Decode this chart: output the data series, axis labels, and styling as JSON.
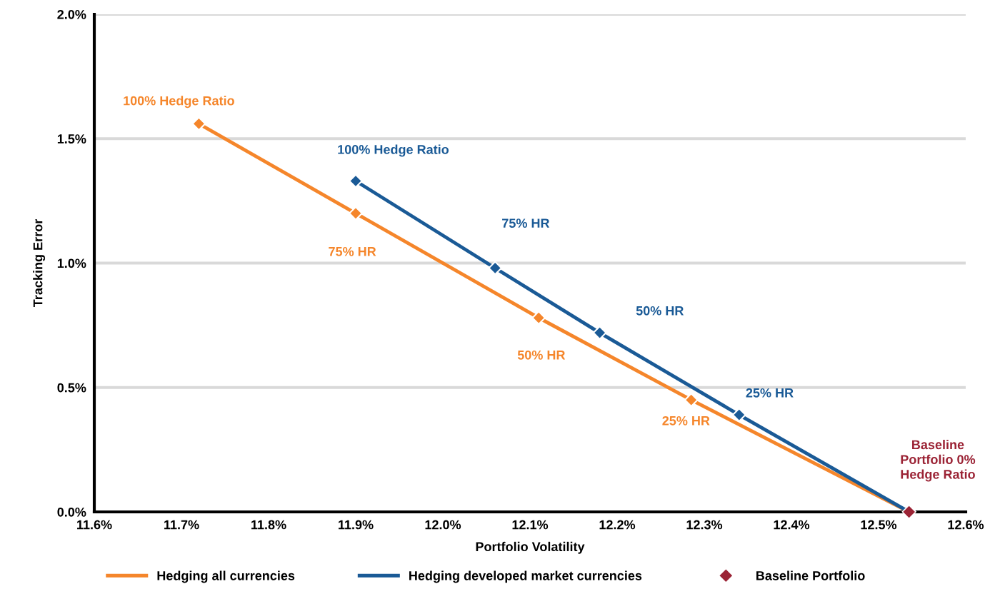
{
  "chart_data": {
    "type": "line",
    "xlabel": "Portfolio Volatility",
    "ylabel": "Tracking Error",
    "xlim": [
      11.6,
      12.6
    ],
    "ylim": [
      0,
      2.0
    ],
    "xticks": [
      {
        "value": 11.6,
        "label": "11.6%"
      },
      {
        "value": 11.7,
        "label": "11.7%"
      },
      {
        "value": 11.8,
        "label": "11.8%"
      },
      {
        "value": 11.9,
        "label": "11.9%"
      },
      {
        "value": 12.0,
        "label": "12.0%"
      },
      {
        "value": 12.1,
        "label": "12.1%"
      },
      {
        "value": 12.2,
        "label": "12.2%"
      },
      {
        "value": 12.3,
        "label": "12.3%"
      },
      {
        "value": 12.4,
        "label": "12.4%"
      },
      {
        "value": 12.5,
        "label": "12.5%"
      },
      {
        "value": 12.6,
        "label": "12.6%"
      }
    ],
    "yticks": [
      {
        "value": 0,
        "label": "0.0%"
      },
      {
        "value": 0.5,
        "label": "0.5%"
      },
      {
        "value": 1.0,
        "label": "1.0%"
      },
      {
        "value": 1.5,
        "label": "1.5%"
      },
      {
        "value": 2.0,
        "label": "2.0%"
      }
    ],
    "annotations": [
      "100% Hedge Ratio",
      "75% HR",
      "50% HR",
      "25% HR",
      "100% Hedge Ratio",
      "75% HR",
      "50% HR",
      "25% HR",
      "Baseline\nPortfolio 0%\nHedge Ratio"
    ],
    "grid": "y",
    "legend": "bottom",
    "marker": "diamond",
    "line_style": "solid",
    "series": [
      {
        "name": "Hedging all currencies",
        "color": "#f5862b",
        "x": [
          11.72,
          11.9,
          12.11,
          12.285,
          12.535
        ],
        "values": [
          1.56,
          1.2,
          0.78,
          0.45,
          0
        ]
      },
      {
        "name": "Hedging developed market currencies",
        "color": "#1a5a96",
        "x": [
          11.9,
          12.06,
          12.18,
          12.34,
          12.535
        ],
        "values": [
          1.33,
          0.98,
          0.72,
          0.39,
          0
        ]
      },
      {
        "name": "Baseline Portfolio",
        "type": "scatter",
        "color": "#9b2335",
        "x": [
          12.535
        ],
        "values": [
          0
        ]
      }
    ]
  }
}
